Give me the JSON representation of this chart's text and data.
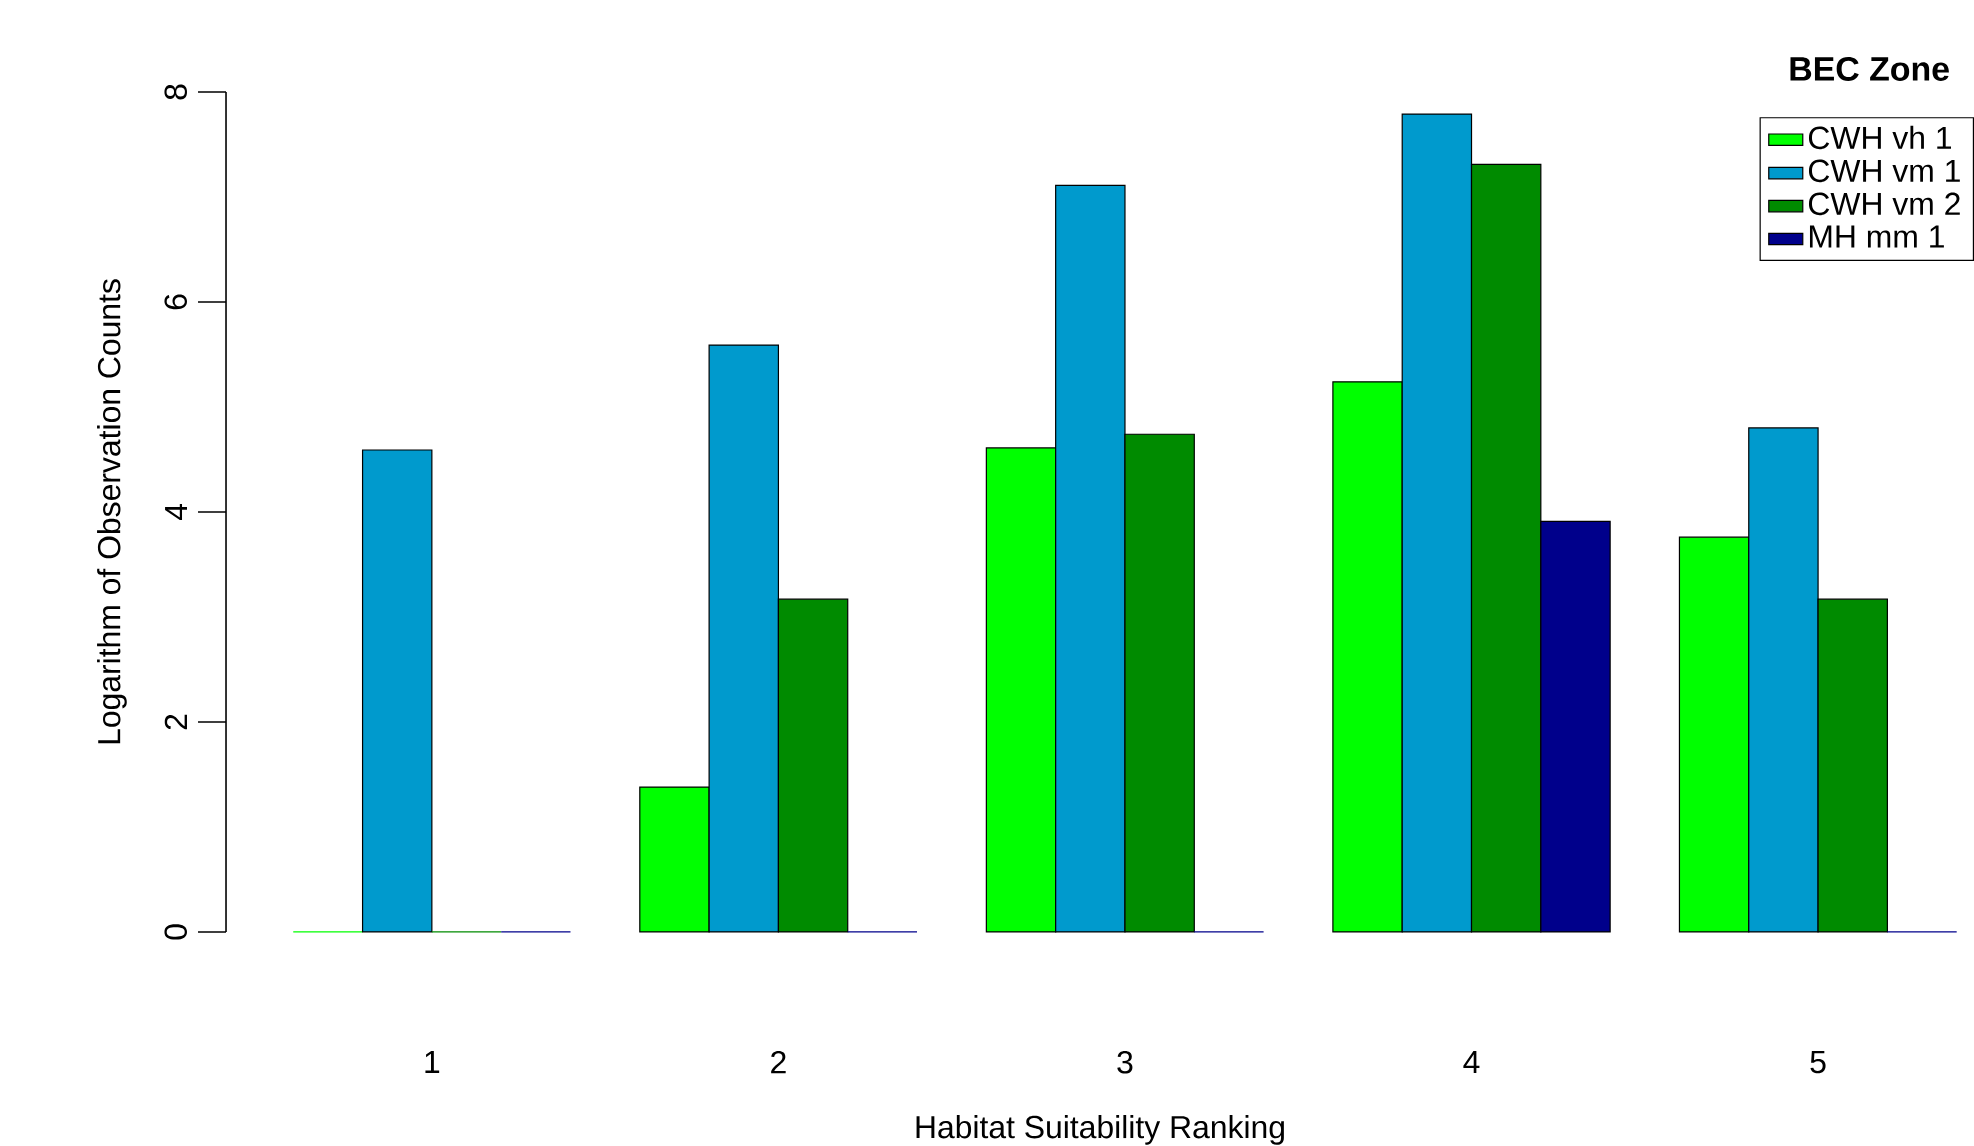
{
  "chart_data": {
    "type": "bar",
    "xlabel": "Habitat Suitability Ranking",
    "ylabel": "Logarithm of Observation Counts",
    "legend_title": "BEC Zone",
    "categories": [
      "1",
      "2",
      "3",
      "4",
      "5"
    ],
    "series": [
      {
        "name": "CWH vh 1",
        "color": "#00ff00",
        "values": [
          0,
          1.38,
          4.61,
          5.24,
          3.76
        ]
      },
      {
        "name": "CWH vm 1",
        "color": "#009acd",
        "values": [
          4.59,
          5.59,
          7.11,
          7.79,
          4.8
        ]
      },
      {
        "name": "CWH vm 2",
        "color": "#008b00",
        "values": [
          0,
          3.17,
          4.74,
          7.31,
          3.17
        ]
      },
      {
        "name": "MH  mm 1",
        "color": "#00008b",
        "values": [
          0,
          0,
          0,
          3.91,
          0
        ]
      }
    ],
    "ylim": [
      0,
      8
    ],
    "yticks": [
      0,
      2,
      4,
      6,
      8
    ],
    "legend": "top right",
    "grid": false
  }
}
